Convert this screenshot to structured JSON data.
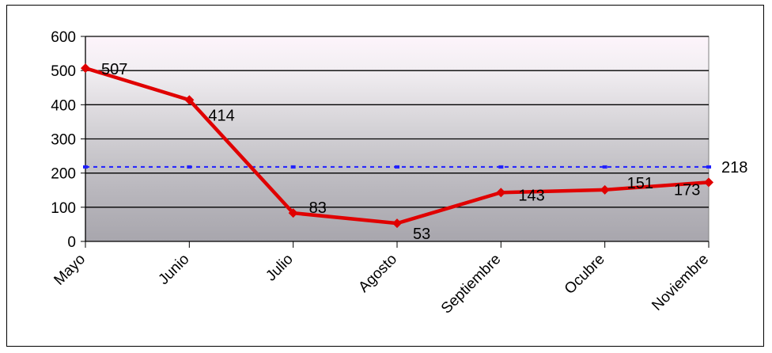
{
  "chart_data": {
    "type": "line",
    "categories": [
      "Mayo",
      "Junio",
      "Julio",
      "Agosto",
      "Septiembre",
      "Ocubre",
      "Noviembre"
    ],
    "series": [
      {
        "values": [
          507,
          414,
          83,
          53,
          143,
          151,
          173
        ],
        "color": "#e00000"
      }
    ],
    "reference_line": {
      "value": 218,
      "label": "218",
      "color": "#1f1fff",
      "style": "dashed"
    },
    "data_labels": [
      "507",
      "414",
      "83",
      "53",
      "143",
      "151",
      "173"
    ],
    "yticks": [
      "0",
      "100",
      "200",
      "300",
      "400",
      "500",
      "600"
    ],
    "ylim": [
      0,
      600
    ],
    "grid": true,
    "legend": "none"
  }
}
